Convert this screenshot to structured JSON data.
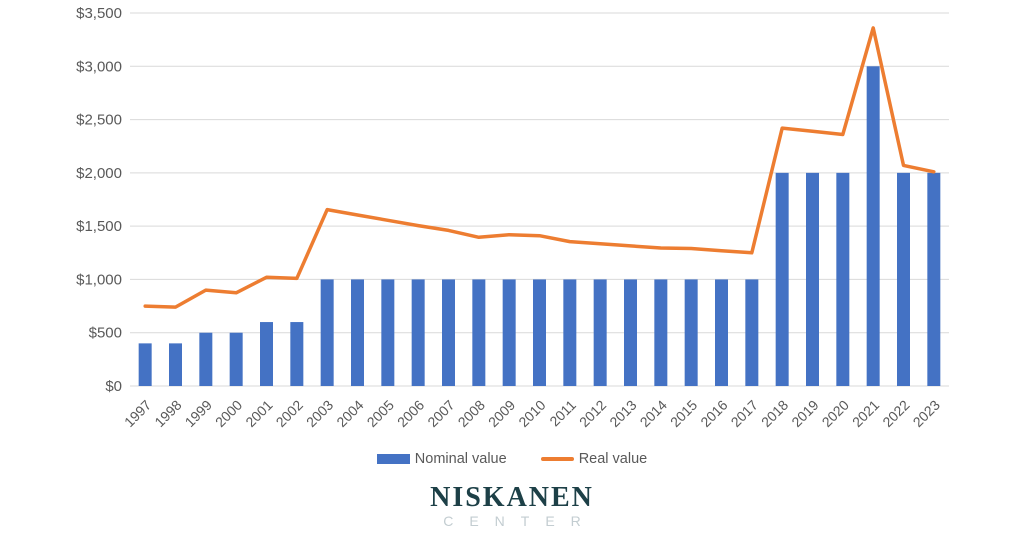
{
  "colors": {
    "nominal_bar": "#4472C4",
    "real_line": "#ED7D31",
    "gridline": "#D9D9D9",
    "axis_label": "#595959",
    "legend_text": "#595959",
    "logo_title": "#1d4047",
    "logo_subtitle": "#c3cdd1"
  },
  "legend": {
    "nominal_label": "Nominal value",
    "real_label": "Real value"
  },
  "logo": {
    "title": "NISKANEN",
    "subtitle": "CENTER"
  },
  "chart_data": {
    "type": "bar",
    "subtype": "bar-line-combo",
    "title": "",
    "xlabel": "",
    "ylabel": "",
    "ylim": [
      0,
      3500
    ],
    "grid": true,
    "legend_position": "bottom",
    "categories": [
      "1997",
      "1998",
      "1999",
      "2000",
      "2001",
      "2002",
      "2003",
      "2004",
      "2005",
      "2006",
      "2007",
      "2008",
      "2009",
      "2010",
      "2011",
      "2012",
      "2013",
      "2014",
      "2015",
      "2016",
      "2017",
      "2018",
      "2019",
      "2020",
      "2021",
      "2022",
      "2023"
    ],
    "y_ticks": [
      {
        "label": "$0",
        "value": 0
      },
      {
        "label": "$500",
        "value": 500
      },
      {
        "label": "$1,000",
        "value": 1000
      },
      {
        "label": "$1,500",
        "value": 1500
      },
      {
        "label": "$2,000",
        "value": 2000
      },
      {
        "label": "$2,500",
        "value": 2500
      },
      {
        "label": "$3,000",
        "value": 3000
      },
      {
        "label": "$3,500",
        "value": 3500
      }
    ],
    "series": [
      {
        "name": "Nominal value",
        "type": "bar",
        "color": "#4472C4",
        "values": [
          400,
          400,
          500,
          500,
          600,
          600,
          1000,
          1000,
          1000,
          1000,
          1000,
          1000,
          1000,
          1000,
          1000,
          1000,
          1000,
          1000,
          1000,
          1000,
          1000,
          2000,
          2000,
          2000,
          3000,
          2000,
          2000
        ]
      },
      {
        "name": "Real value",
        "type": "line",
        "color": "#ED7D31",
        "values": [
          750,
          740,
          900,
          875,
          1020,
          1010,
          1655,
          1605,
          1555,
          1505,
          1460,
          1395,
          1420,
          1410,
          1355,
          1335,
          1315,
          1295,
          1290,
          1270,
          1250,
          2420,
          2390,
          2360,
          3360,
          2070,
          2010
        ]
      }
    ]
  }
}
